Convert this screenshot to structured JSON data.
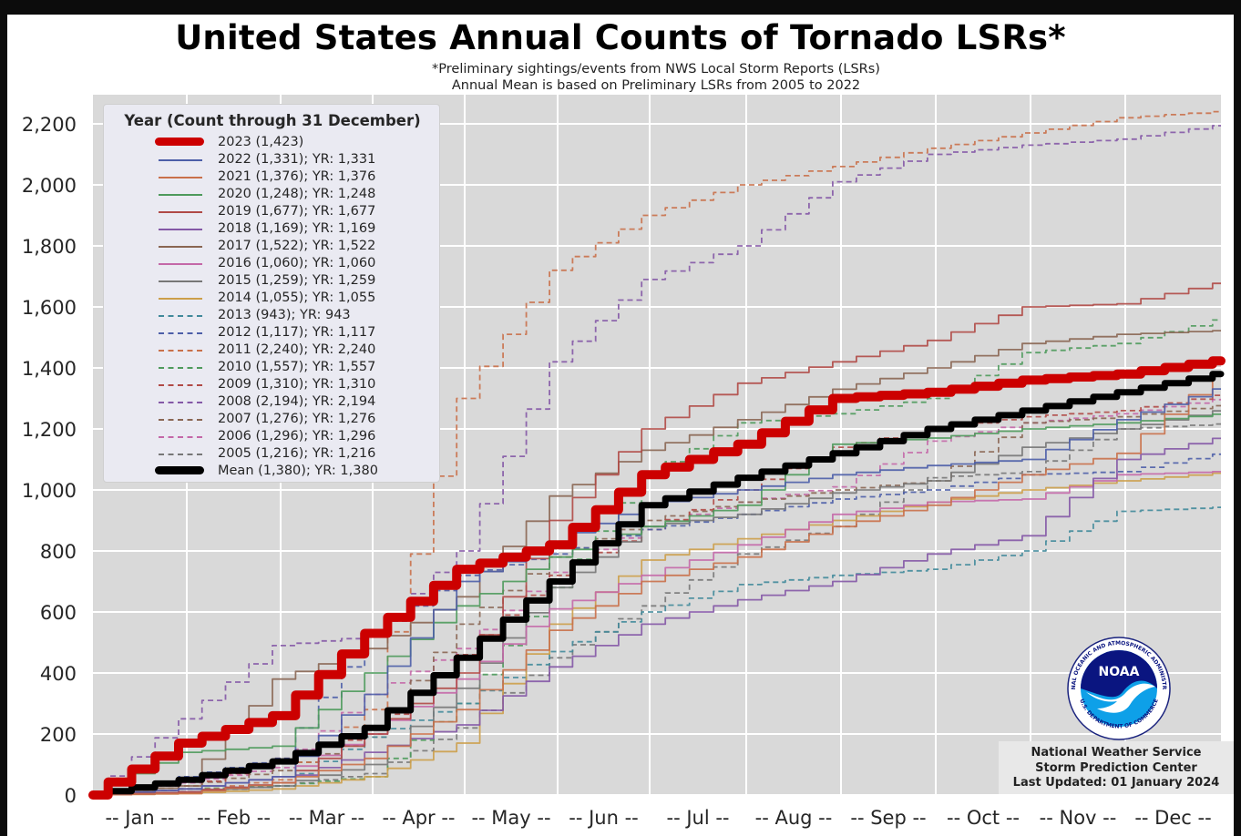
{
  "title": "United States Annual Counts of Tornado LSRs*",
  "subtitle_lines": [
    "*Preliminary sightings/events from NWS Local Storm Reports (LSRs)",
    "Annual Mean is based on Preliminary LSRs from 2005 to 2022"
  ],
  "credit": {
    "line1": "National Weather Service",
    "line2": "Storm Prediction Center",
    "line3": "Last Updated: 01 January 2024"
  },
  "logo": {
    "name": "NOAA",
    "ring_text_top": "NATIONAL OCEANIC AND ATMOSPHERIC ADMINISTRATION",
    "ring_text_bottom": "U.S. DEPARTMENT OF COMMERCE"
  },
  "chart_data": {
    "type": "line",
    "title": "United States Annual Counts of Tornado LSRs*",
    "xlabel": "",
    "ylabel": "",
    "x_points": [
      "Jan 1",
      "Feb 1",
      "Mar 1",
      "Apr 1",
      "May 1",
      "Jun 1",
      "Jul 1",
      "Aug 1",
      "Sep 1",
      "Oct 1",
      "Nov 1",
      "Dec 1",
      "Dec 31"
    ],
    "x_tick_labels": [
      "-- Jan --",
      "-- Feb --",
      "-- Mar --",
      "-- Apr --",
      "-- May --",
      "-- Jun --",
      "-- Jul --",
      "-- Aug --",
      "-- Sep --",
      "-- Oct --",
      "-- Nov --",
      "-- Dec --"
    ],
    "ylim": [
      0,
      2300
    ],
    "y_ticks": [
      0,
      200,
      400,
      600,
      800,
      1000,
      1200,
      1400,
      1600,
      1800,
      2000,
      2200
    ],
    "y_tick_labels": [
      "0",
      "200",
      "400",
      "600",
      "800",
      "1,000",
      "1,200",
      "1,400",
      "1,600",
      "1,800",
      "2,000",
      "2,200"
    ],
    "grid": true,
    "legend_title": "Year (Count through 31 December)",
    "legend_position": "upper-left",
    "series": [
      {
        "name": "2023 (1,423)",
        "year": "2023",
        "color": "#cc0000",
        "style": "thick",
        "values": [
          0,
          170,
          260,
          530,
          740,
          820,
          1050,
          1150,
          1300,
          1320,
          1360,
          1380,
          1423
        ]
      },
      {
        "name": "2022 (1,331); YR: 1,331",
        "year": "2022",
        "color": "#4c5ea8",
        "style": "solid",
        "values": [
          0,
          20,
          60,
          330,
          700,
          830,
          950,
          1000,
          1050,
          1080,
          1100,
          1230,
          1331
        ]
      },
      {
        "name": "2021 (1,376); YR: 1,376",
        "year": "2021",
        "color": "#c9704a",
        "style": "solid",
        "values": [
          0,
          5,
          40,
          120,
          280,
          540,
          700,
          780,
          880,
          950,
          1050,
          1120,
          1376
        ]
      },
      {
        "name": "2020 (1,248); YR: 1,248",
        "year": "2020",
        "color": "#4e9a5c",
        "style": "solid",
        "values": [
          0,
          140,
          160,
          400,
          620,
          780,
          880,
          950,
          1150,
          1170,
          1200,
          1220,
          1248
        ]
      },
      {
        "name": "2019 (1,677); YR: 1,677",
        "year": "2019",
        "color": "#b04a46",
        "style": "solid",
        "values": [
          0,
          10,
          40,
          200,
          400,
          900,
          1200,
          1350,
          1420,
          1490,
          1600,
          1610,
          1677
        ]
      },
      {
        "name": "2018 (1,169); YR: 1,169",
        "year": "2018",
        "color": "#8458a6",
        "style": "solid",
        "values": [
          0,
          10,
          40,
          140,
          230,
          420,
          560,
          640,
          700,
          790,
          850,
          1100,
          1169
        ]
      },
      {
        "name": "2017 (1,522); YR: 1,522",
        "year": "2017",
        "color": "#8a6653",
        "style": "solid",
        "values": [
          0,
          30,
          380,
          480,
          650,
          980,
          1130,
          1230,
          1330,
          1400,
          1480,
          1510,
          1522
        ]
      },
      {
        "name": "2016 (1,060); YR: 1,060",
        "year": "2016",
        "color": "#c468a8",
        "style": "solid",
        "values": [
          0,
          20,
          60,
          200,
          380,
          610,
          720,
          820,
          920,
          960,
          970,
          1050,
          1060
        ]
      },
      {
        "name": "2015 (1,259); YR: 1,259",
        "year": "2015",
        "color": "#777777",
        "style": "solid",
        "values": [
          0,
          10,
          30,
          100,
          350,
          680,
          880,
          920,
          990,
          1030,
          1140,
          1200,
          1259
        ]
      },
      {
        "name": "2014 (1,055); YR: 1,055",
        "year": "2014",
        "color": "#cc9f4a",
        "style": "solid",
        "values": [
          0,
          5,
          20,
          60,
          170,
          560,
          770,
          840,
          900,
          960,
          1000,
          1030,
          1055
        ]
      },
      {
        "name": "2013 (943); YR: 943",
        "year": "2013",
        "color": "#41899a",
        "style": "dashed",
        "values": [
          0,
          10,
          30,
          190,
          300,
          470,
          600,
          690,
          720,
          740,
          800,
          930,
          943
        ]
      },
      {
        "name": "2012 (1,117); YR: 1,117",
        "year": "2012",
        "color": "#4c5ea8",
        "style": "dashed",
        "values": [
          0,
          60,
          120,
          520,
          720,
          790,
          870,
          920,
          970,
          1000,
          1050,
          1060,
          1117
        ]
      },
      {
        "name": "2011 (2,240); YR: 2,240",
        "year": "2011",
        "color": "#c9704a",
        "style": "dashed",
        "values": [
          0,
          10,
          50,
          280,
          1300,
          1720,
          1900,
          2000,
          2060,
          2120,
          2170,
          2220,
          2240
        ]
      },
      {
        "name": "2010 (1,557); YR: 1,557",
        "year": "2010",
        "color": "#4e9a5c",
        "style": "dashed",
        "values": [
          0,
          20,
          30,
          60,
          300,
          680,
          1050,
          1220,
          1250,
          1300,
          1450,
          1480,
          1557
        ]
      },
      {
        "name": "2009 (1,310); YR: 1,310",
        "year": "2009",
        "color": "#b04a46",
        "style": "dashed",
        "values": [
          0,
          20,
          120,
          200,
          460,
          720,
          870,
          1000,
          1140,
          1200,
          1240,
          1260,
          1310
        ]
      },
      {
        "name": "2008 (2,194); YR: 2,194",
        "year": "2008",
        "color": "#8458a6",
        "style": "dashed",
        "values": [
          0,
          250,
          490,
          520,
          800,
          1420,
          1690,
          1800,
          2010,
          2100,
          2130,
          2150,
          2194
        ]
      },
      {
        "name": "2007 (1,276); YR: 1,276",
        "year": "2007",
        "color": "#8a6653",
        "style": "dashed",
        "values": [
          0,
          30,
          80,
          190,
          560,
          780,
          900,
          960,
          1000,
          1030,
          1220,
          1240,
          1276
        ]
      },
      {
        "name": "2006 (1,296); YR: 1,296",
        "year": "2006",
        "color": "#c468a8",
        "style": "dashed",
        "values": [
          0,
          40,
          90,
          330,
          480,
          730,
          880,
          960,
          1010,
          1160,
          1220,
          1250,
          1296
        ]
      },
      {
        "name": "2005 (1,216); YR: 1,216",
        "year": "2005",
        "color": "#777777",
        "style": "dashed",
        "values": [
          0,
          10,
          30,
          70,
          220,
          450,
          620,
          790,
          880,
          1040,
          1060,
          1200,
          1216
        ]
      },
      {
        "name": "Mean (1,380); YR: 1,380",
        "year": "Mean",
        "color": "#000000",
        "style": "thick",
        "values": [
          0,
          50,
          110,
          220,
          450,
          700,
          950,
          1040,
          1120,
          1200,
          1260,
          1320,
          1380
        ]
      }
    ]
  }
}
